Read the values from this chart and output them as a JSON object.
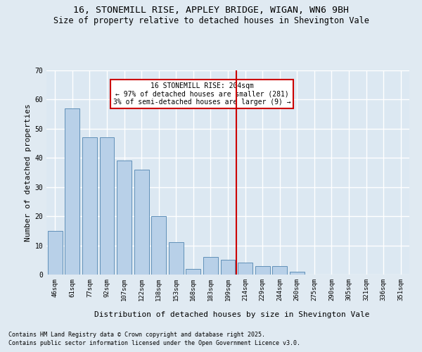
{
  "title1": "16, STONEMILL RISE, APPLEY BRIDGE, WIGAN, WN6 9BH",
  "title2": "Size of property relative to detached houses in Shevington Vale",
  "xlabel": "Distribution of detached houses by size in Shevington Vale",
  "ylabel": "Number of detached properties",
  "categories": [
    "46sqm",
    "61sqm",
    "77sqm",
    "92sqm",
    "107sqm",
    "122sqm",
    "138sqm",
    "153sqm",
    "168sqm",
    "183sqm",
    "199sqm",
    "214sqm",
    "229sqm",
    "244sqm",
    "260sqm",
    "275sqm",
    "290sqm",
    "305sqm",
    "321sqm",
    "336sqm",
    "351sqm"
  ],
  "values": [
    15,
    57,
    47,
    47,
    39,
    36,
    20,
    11,
    2,
    6,
    5,
    4,
    3,
    3,
    1,
    0,
    0,
    0,
    0,
    0,
    0
  ],
  "bar_color": "#b8d0e8",
  "bar_edgecolor": "#6090b8",
  "vline_x": 10.5,
  "vline_color": "#cc0000",
  "ylim": [
    0,
    70
  ],
  "yticks": [
    0,
    10,
    20,
    30,
    40,
    50,
    60,
    70
  ],
  "annotation_text": "16 STONEMILL RISE: 204sqm\n← 97% of detached houses are smaller (281)\n3% of semi-detached houses are larger (9) →",
  "annotation_box_color": "#ffffff",
  "annotation_box_edgecolor": "#cc0000",
  "footer1": "Contains HM Land Registry data © Crown copyright and database right 2025.",
  "footer2": "Contains public sector information licensed under the Open Government Licence v3.0.",
  "bg_color": "#e0eaf2",
  "plot_bg_color": "#dce8f2",
  "grid_color": "#ffffff",
  "title_fontsize": 9.5,
  "subtitle_fontsize": 8.5,
  "tick_fontsize": 6.5,
  "ylabel_fontsize": 8,
  "xlabel_fontsize": 8,
  "footer_fontsize": 6,
  "annot_fontsize": 7
}
